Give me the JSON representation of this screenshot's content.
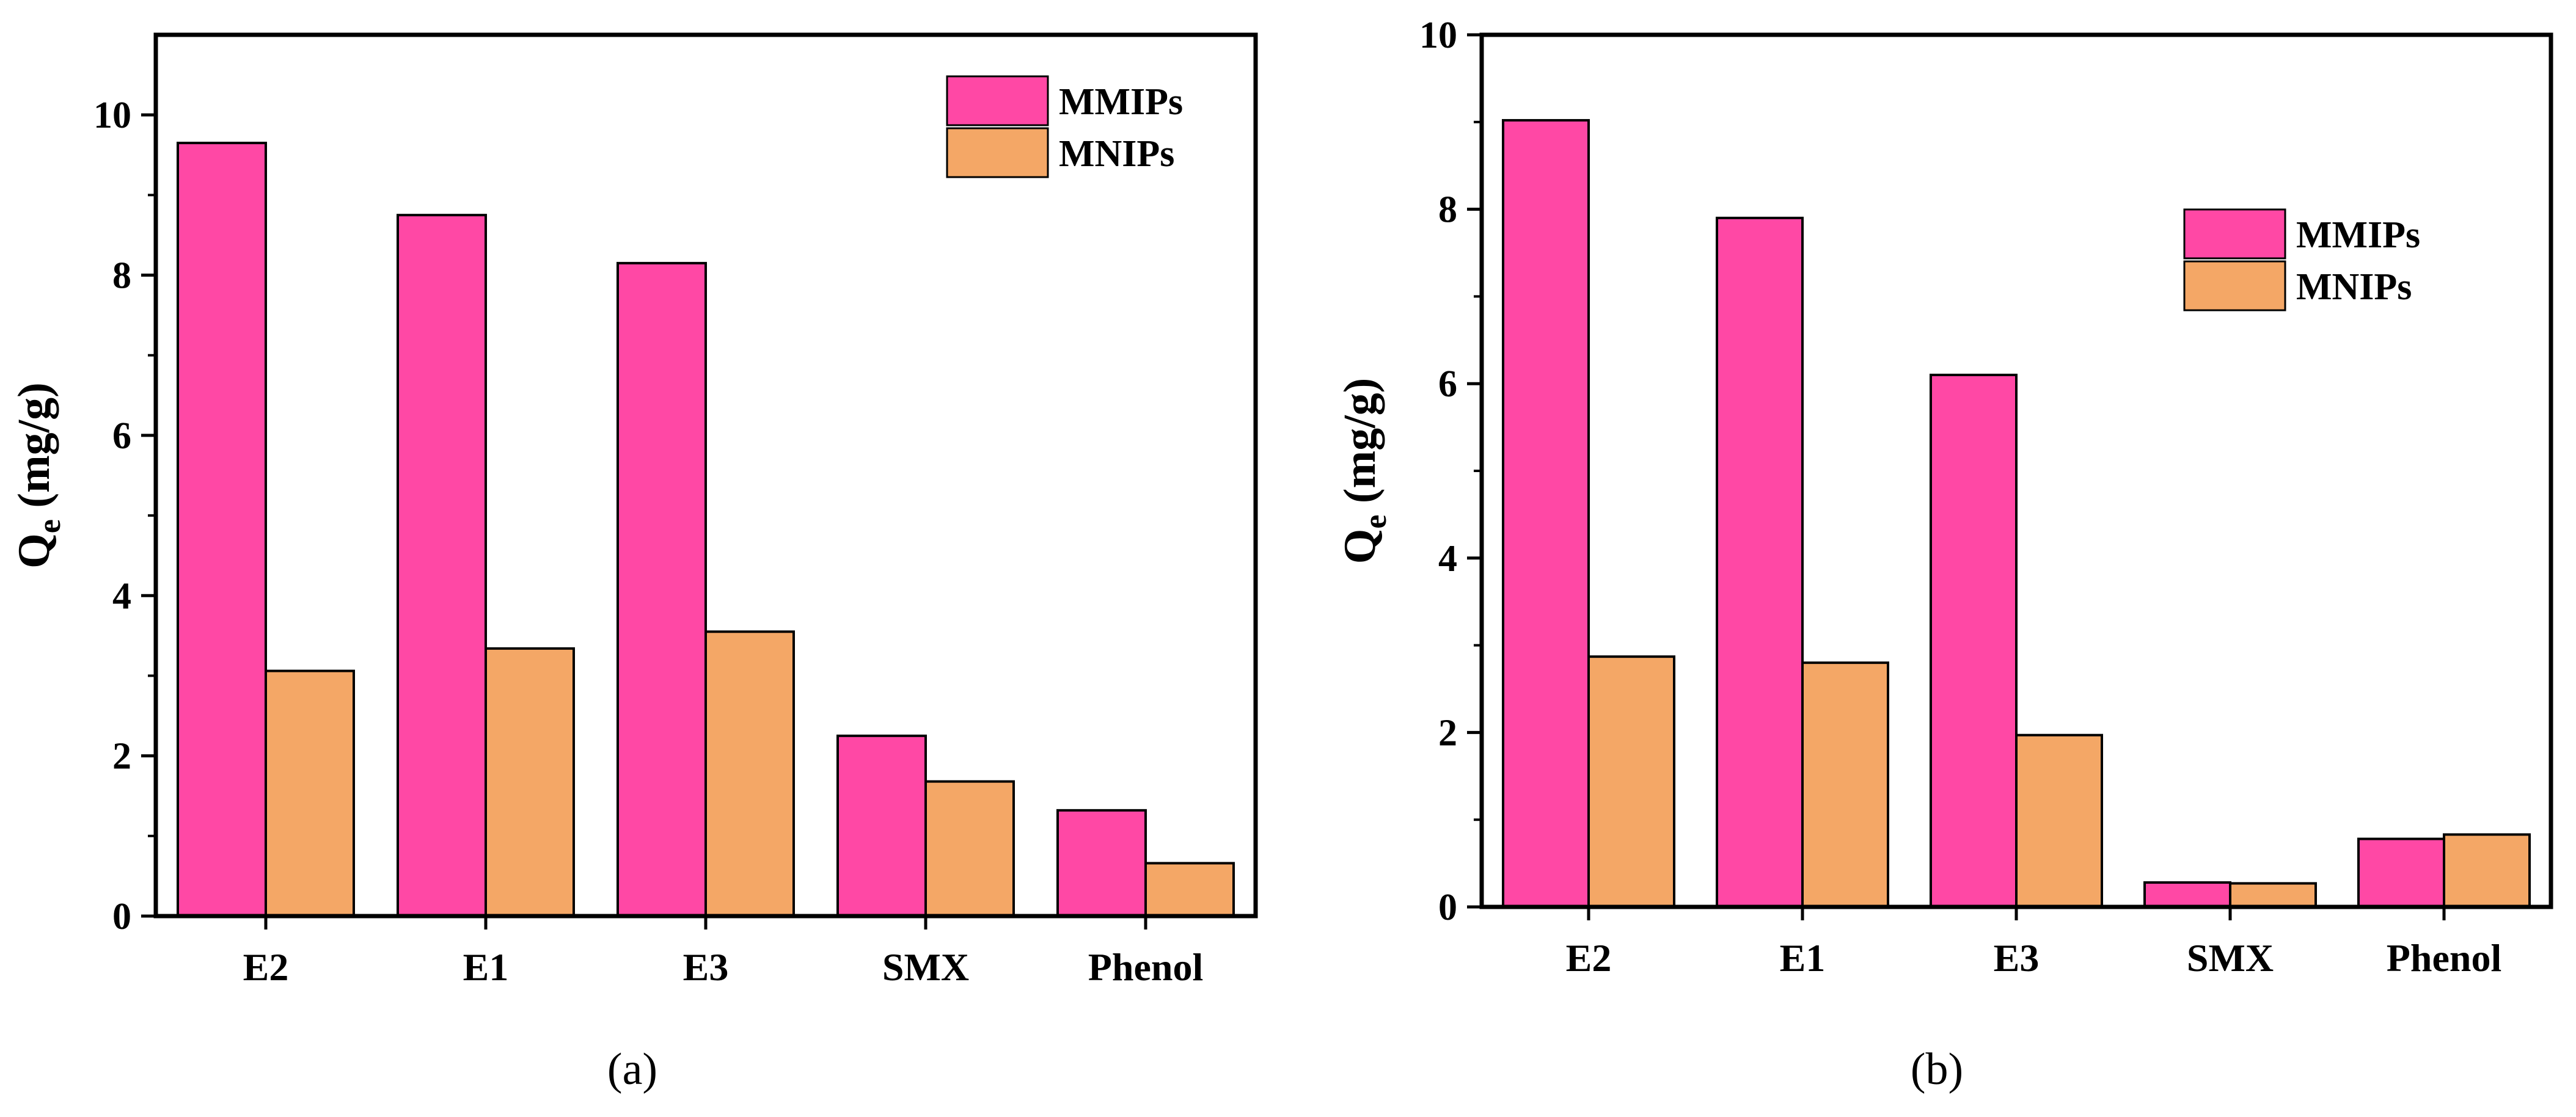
{
  "colors": {
    "series_1": "#ff48a5",
    "series_2": "#f4a766",
    "axis": "#000000"
  },
  "chart_data": [
    {
      "type": "bar",
      "panel": "a",
      "caption": "(a)",
      "categories": [
        "E2",
        "E1",
        "E3",
        "SMX",
        "Phenol"
      ],
      "series": [
        {
          "name": "MMIPs",
          "values": [
            9.65,
            8.75,
            8.15,
            2.25,
            1.32
          ]
        },
        {
          "name": "MNIPs",
          "values": [
            3.06,
            3.34,
            3.55,
            1.68,
            0.66
          ]
        }
      ],
      "ylabel_main": "Q",
      "ylabel_sub": "e",
      "ylabel_unit": " (mg/g)",
      "ylim": [
        0,
        11
      ],
      "yticks": [
        0,
        2,
        4,
        6,
        8,
        10
      ],
      "ytick_labels": [
        "0",
        "2",
        "4",
        "6",
        "8",
        "10"
      ],
      "legend": [
        "MMIPs",
        "MNIPs"
      ],
      "legend_position": "top-right"
    },
    {
      "type": "bar",
      "panel": "b",
      "caption": "(b)",
      "categories": [
        "E2",
        "E1",
        "E3",
        "SMX",
        "Phenol"
      ],
      "series": [
        {
          "name": "MMIPs",
          "values": [
            9.02,
            7.9,
            6.1,
            0.28,
            0.78
          ]
        },
        {
          "name": "MNIPs",
          "values": [
            2.87,
            2.8,
            1.97,
            0.27,
            0.83
          ]
        }
      ],
      "ylabel_main": "Q",
      "ylabel_sub": "e",
      "ylabel_unit": " (mg/g)",
      "ylim": [
        0,
        10
      ],
      "yticks": [
        0,
        2,
        4,
        6,
        8,
        10
      ],
      "ytick_labels": [
        "0",
        "2",
        "4",
        "6",
        "8",
        "10"
      ],
      "legend": [
        "MMIPs",
        "MNIPs"
      ],
      "legend_position": "top-right"
    }
  ]
}
